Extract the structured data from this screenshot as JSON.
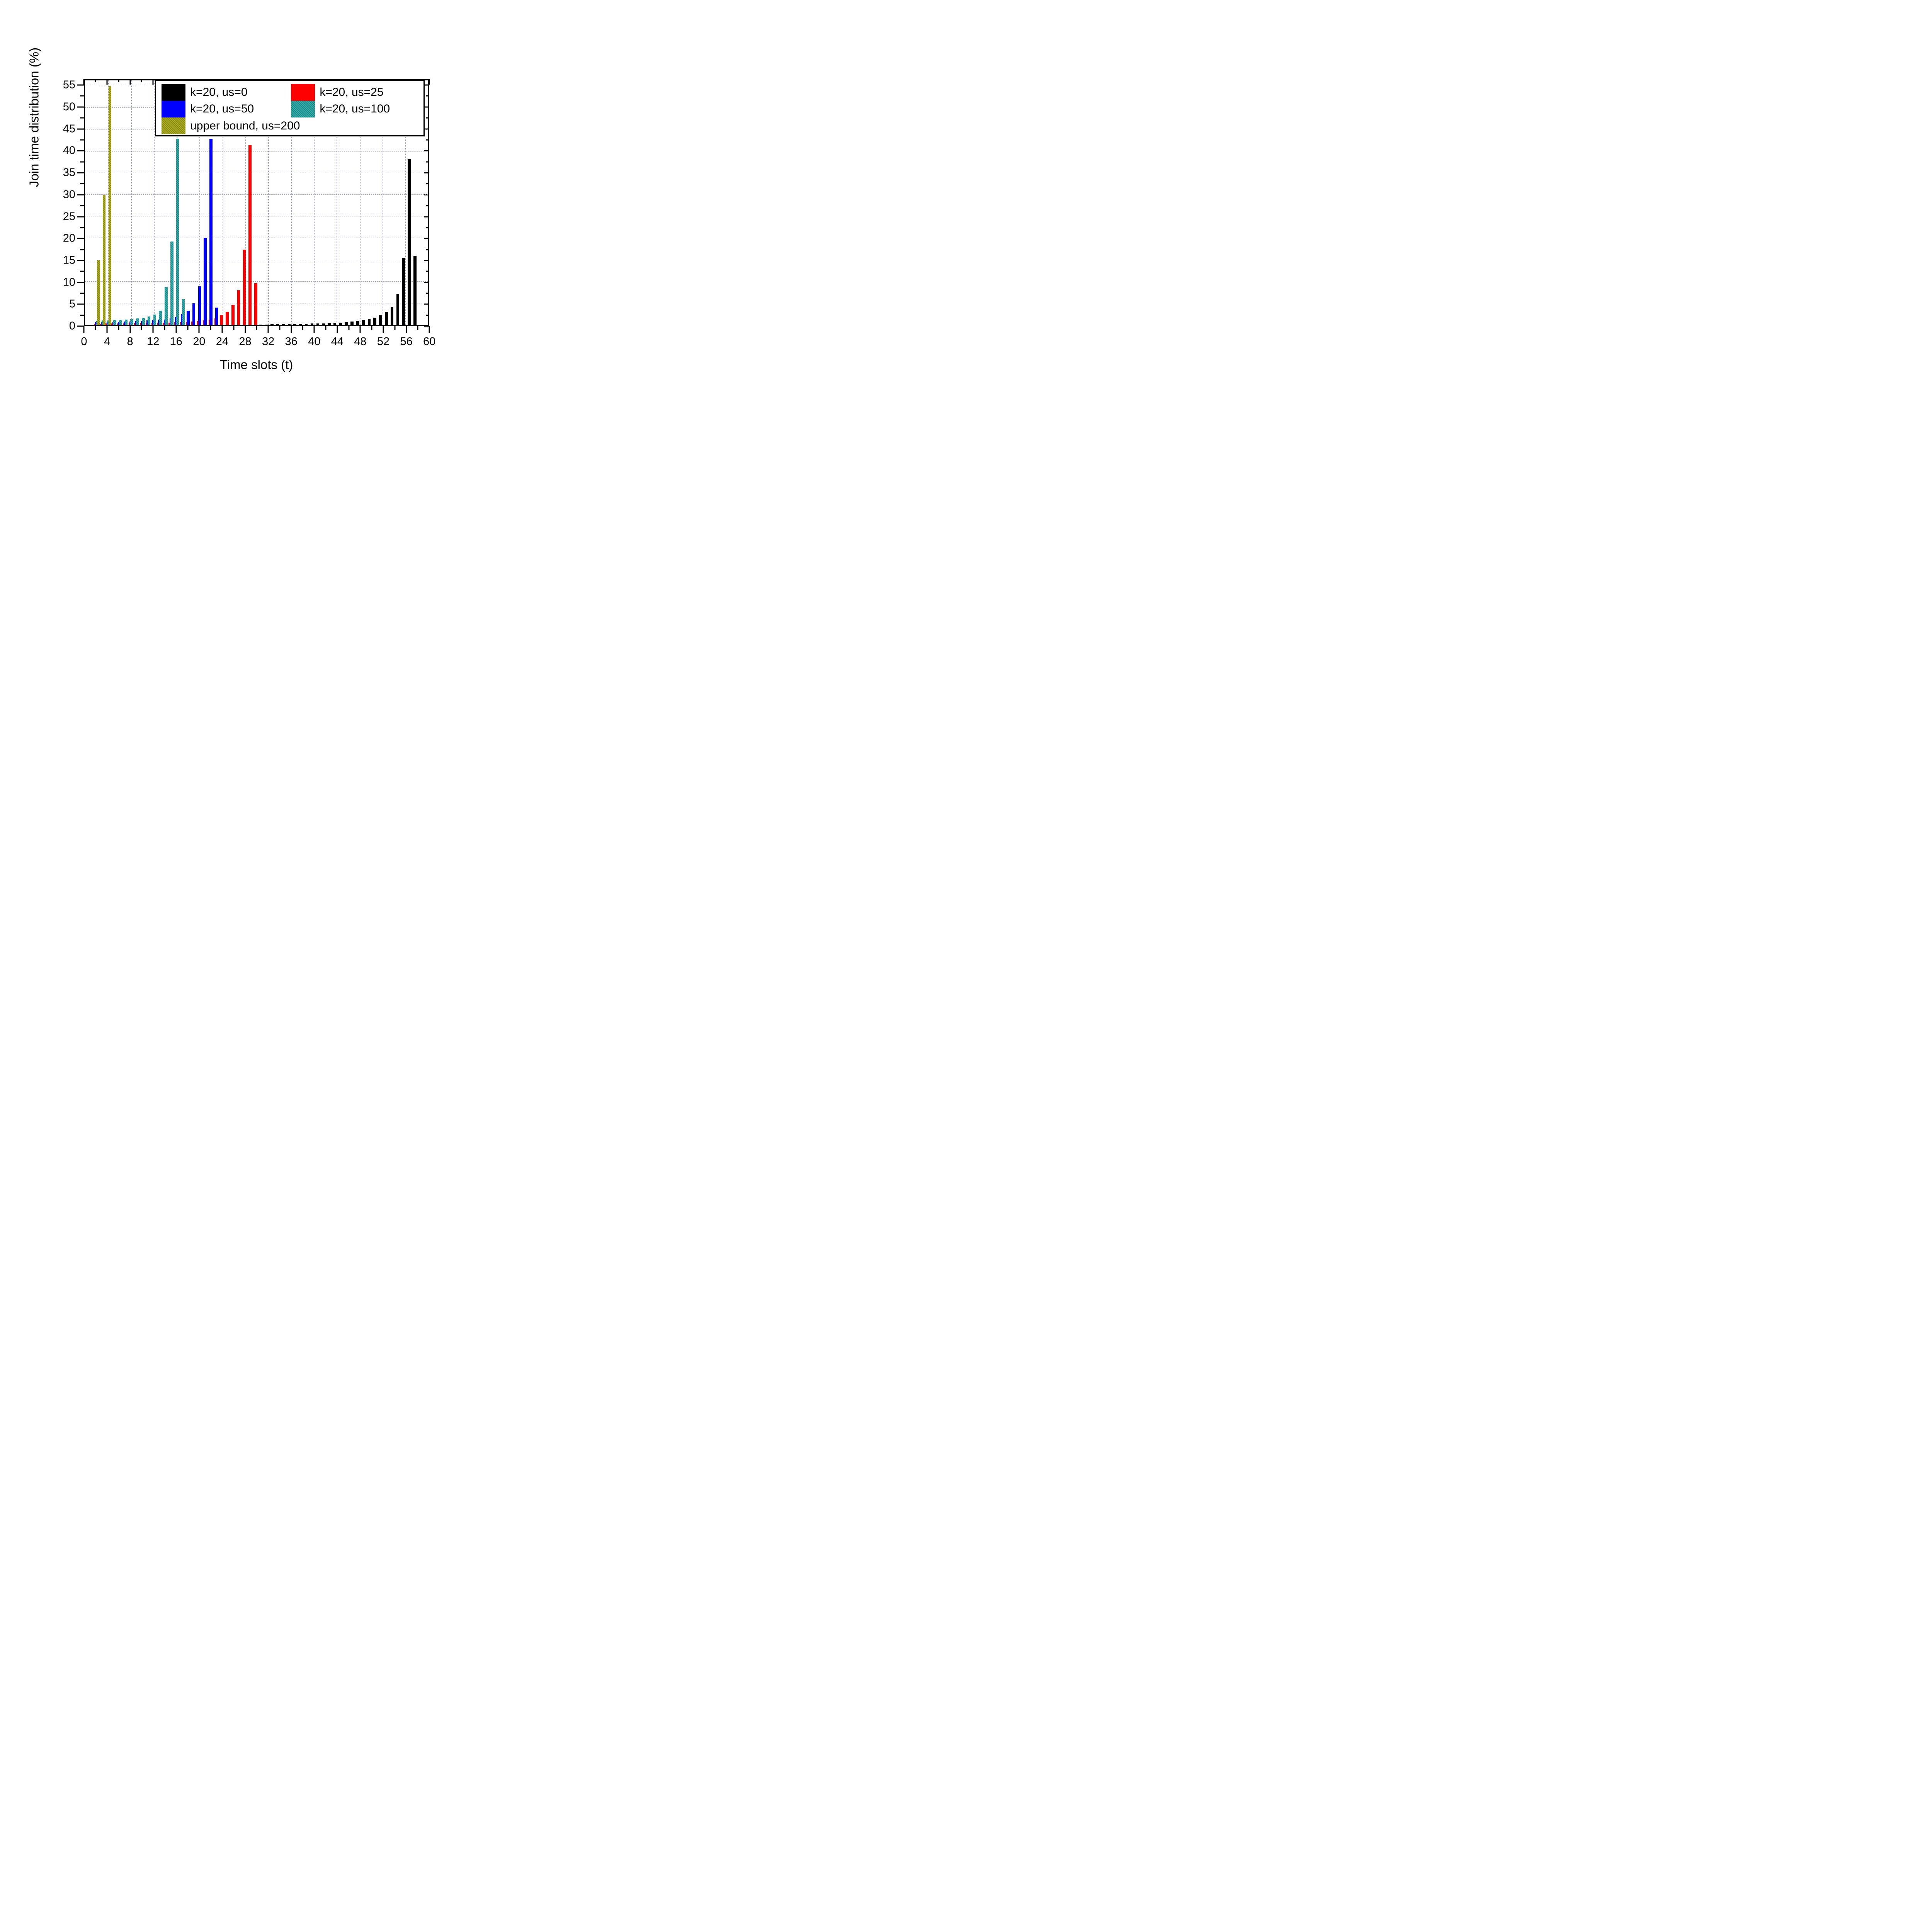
{
  "figure": {
    "background": "#ffffff",
    "xlabel": "Time slots (t)",
    "ylabel": "Join time distribution (%)"
  },
  "chart_data": {
    "type": "bar",
    "title": "",
    "xlabel": "Time slots (t)",
    "ylabel": "Join time distribution (%)",
    "xlim": [
      0,
      60
    ],
    "ylim": [
      0,
      56.3
    ],
    "x_major_tick_step": 4,
    "x_minor_tick_step": 2,
    "y_major_tick_step": 5,
    "y_minor_tick_step": 2.5,
    "x_tick_labels": [
      0,
      4,
      8,
      12,
      16,
      20,
      24,
      28,
      32,
      36,
      40,
      44,
      48,
      52,
      56,
      60
    ],
    "y_tick_labels": [
      0,
      5,
      10,
      15,
      20,
      25,
      30,
      35,
      40,
      45,
      50,
      55
    ],
    "grid": {
      "horizontal_every": 5,
      "vertical_every": 4,
      "h_style": "dashed",
      "v_style": "dotted",
      "color": "#9aa0b0"
    },
    "legend_position": "top-inside",
    "bar_width_slots": 0.51,
    "bar_offset_step_slots": 0.161,
    "series": [
      {
        "name": "k=20, us=0",
        "color": "#000000",
        "hatched": false,
        "points": [
          [
            31,
            0.12
          ],
          [
            32,
            0.14
          ],
          [
            33,
            0.16
          ],
          [
            34,
            0.18
          ],
          [
            35,
            0.2
          ],
          [
            36,
            0.22
          ],
          [
            37,
            0.25
          ],
          [
            38,
            0.28
          ],
          [
            39,
            0.3
          ],
          [
            40,
            0.33
          ],
          [
            41,
            0.36
          ],
          [
            42,
            0.4
          ],
          [
            43,
            0.44
          ],
          [
            44,
            0.48
          ],
          [
            45,
            0.55
          ],
          [
            46,
            0.65
          ],
          [
            47,
            0.8
          ],
          [
            48,
            0.95
          ],
          [
            49,
            1.2
          ],
          [
            50,
            1.4
          ],
          [
            51,
            1.7
          ],
          [
            52,
            2.2
          ],
          [
            53,
            3.0
          ],
          [
            54,
            4.2
          ],
          [
            55,
            7.2
          ],
          [
            56,
            15.4
          ],
          [
            57,
            38.2
          ],
          [
            58,
            15.9
          ]
        ]
      },
      {
        "name": "k=20, us=25",
        "color": "#ff0000",
        "hatched": false,
        "points": [
          [
            2,
            0.3
          ],
          [
            3,
            0.32
          ],
          [
            4,
            0.34
          ],
          [
            5,
            0.36
          ],
          [
            6,
            0.38
          ],
          [
            7,
            0.4
          ],
          [
            8,
            0.42
          ],
          [
            9,
            0.45
          ],
          [
            10,
            0.48
          ],
          [
            11,
            0.5
          ],
          [
            12,
            0.5
          ],
          [
            13,
            0.52
          ],
          [
            14,
            0.55
          ],
          [
            15,
            0.58
          ],
          [
            16,
            0.65
          ],
          [
            17,
            0.7
          ],
          [
            18,
            0.75
          ],
          [
            19,
            0.8
          ],
          [
            20,
            0.9
          ],
          [
            21,
            1.1
          ],
          [
            22,
            1.3
          ],
          [
            23,
            1.5
          ],
          [
            24,
            2.2
          ],
          [
            25,
            3.0
          ],
          [
            26,
            4.6
          ],
          [
            27,
            8.0
          ],
          [
            28,
            17.4
          ],
          [
            29,
            41.4
          ],
          [
            30,
            9.6
          ]
        ]
      },
      {
        "name": "k=20, us=50",
        "color": "#0000ff",
        "hatched": false,
        "points": [
          [
            2,
            0.6
          ],
          [
            3,
            0.65
          ],
          [
            4,
            0.68
          ],
          [
            5,
            0.7
          ],
          [
            6,
            0.75
          ],
          [
            7,
            0.8
          ],
          [
            8,
            0.85
          ],
          [
            9,
            0.9
          ],
          [
            10,
            1.0
          ],
          [
            11,
            1.1
          ],
          [
            12,
            1.2
          ],
          [
            13,
            1.25
          ],
          [
            14,
            1.3
          ],
          [
            15,
            1.6
          ],
          [
            16,
            1.9
          ],
          [
            17,
            2.5
          ],
          [
            18,
            3.3
          ],
          [
            19,
            5.0
          ],
          [
            20,
            8.9
          ],
          [
            21,
            20.0
          ],
          [
            22,
            42.8
          ],
          [
            23,
            4.0
          ]
        ]
      },
      {
        "name": "k=20, us=100",
        "color": "#119a9a",
        "hatched": true,
        "points": [
          [
            2,
            1.0
          ],
          [
            3,
            1.05
          ],
          [
            4,
            1.1
          ],
          [
            5,
            1.15
          ],
          [
            6,
            1.2
          ],
          [
            7,
            1.3
          ],
          [
            8,
            1.35
          ],
          [
            9,
            1.5
          ],
          [
            10,
            1.65
          ],
          [
            11,
            2.0
          ],
          [
            12,
            2.45
          ],
          [
            13,
            3.3
          ],
          [
            14,
            8.7
          ],
          [
            15,
            19.2
          ],
          [
            16,
            42.9
          ],
          [
            17,
            6.0
          ]
        ]
      },
      {
        "name": "upper bound, us=200",
        "color": "#9a9a00",
        "hatched": true,
        "points": [
          [
            2,
            15
          ],
          [
            3,
            30
          ],
          [
            4,
            55
          ]
        ]
      }
    ],
    "legend_entries": [
      "k=20, us=0",
      "k=20, us=25",
      "k=20, us=50",
      "k=20, us=100",
      "upper bound, us=200"
    ]
  }
}
